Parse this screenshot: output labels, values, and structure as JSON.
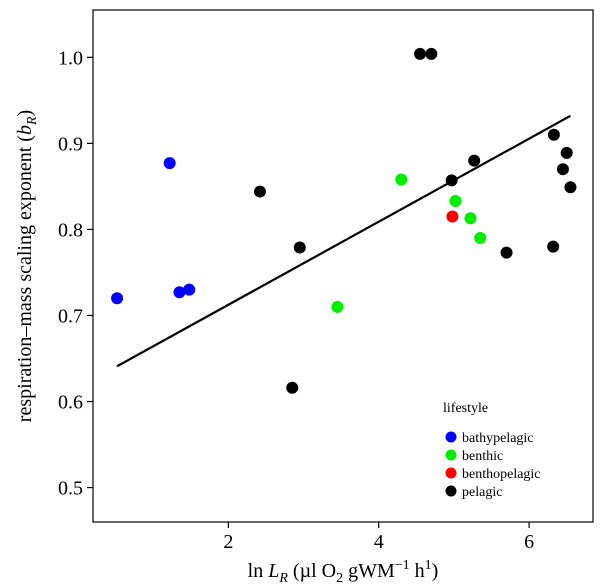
{
  "chart_data": {
    "type": "scatter",
    "xlabel_parts": {
      "prefix": "ln ",
      "var": "L",
      "var_sub": "R",
      "mid": " (µl O",
      "o2_sub": "2",
      "units": " gWM",
      "exp_neg": "−1",
      "hour": " h",
      "exp_pos": "1",
      "close": ")"
    },
    "ylabel_parts": {
      "text": "respiration–mass scaling exponent (",
      "var": "b",
      "var_sub": "R",
      "close": ")"
    },
    "xlim": [
      0.2,
      6.85
    ],
    "ylim": [
      0.46,
      1.055
    ],
    "xticks": [
      2,
      4,
      6
    ],
    "yticks": [
      0.5,
      0.6,
      0.7,
      0.8,
      0.9,
      1.0
    ],
    "ytick_labels": [
      "0.5",
      "0.6",
      "0.7",
      "0.8",
      "0.9",
      "1.0"
    ],
    "xtick_labels": [
      "2",
      "4",
      "6"
    ],
    "legend": {
      "title": "lifestyle",
      "placement": "bottom-right",
      "entries": [
        {
          "label": "bathypelagic",
          "color": "#0000ff"
        },
        {
          "label": "benthic",
          "color": "#00ee00"
        },
        {
          "label": "benthopelagic",
          "color": "#ff0000"
        },
        {
          "label": "pelagic",
          "color": "#000000"
        }
      ]
    },
    "series": [
      {
        "name": "bathypelagic",
        "color": "#0000ff",
        "points": [
          [
            0.52,
            0.72
          ],
          [
            1.22,
            0.877
          ],
          [
            1.35,
            0.727
          ],
          [
            1.48,
            0.73
          ]
        ]
      },
      {
        "name": "benthic",
        "color": "#00ee00",
        "points": [
          [
            3.45,
            0.71
          ],
          [
            4.3,
            0.858
          ],
          [
            5.02,
            0.833
          ],
          [
            5.22,
            0.813
          ],
          [
            5.35,
            0.79
          ]
        ]
      },
      {
        "name": "benthopelagic",
        "color": "#ff0000",
        "points": [
          [
            4.98,
            0.815
          ]
        ]
      },
      {
        "name": "pelagic",
        "color": "#000000",
        "points": [
          [
            2.42,
            0.844
          ],
          [
            2.85,
            0.616
          ],
          [
            2.95,
            0.779
          ],
          [
            4.55,
            1.004
          ],
          [
            4.7,
            1.004
          ],
          [
            4.97,
            0.857
          ],
          [
            5.27,
            0.88
          ],
          [
            5.7,
            0.773
          ],
          [
            6.32,
            0.78
          ],
          [
            6.33,
            0.91
          ],
          [
            6.45,
            0.87
          ],
          [
            6.5,
            0.889
          ],
          [
            6.55,
            0.849
          ]
        ]
      }
    ],
    "fit_line": {
      "x": [
        0.52,
        6.55
      ],
      "y": [
        0.641,
        0.932
      ],
      "color": "#000000"
    }
  }
}
